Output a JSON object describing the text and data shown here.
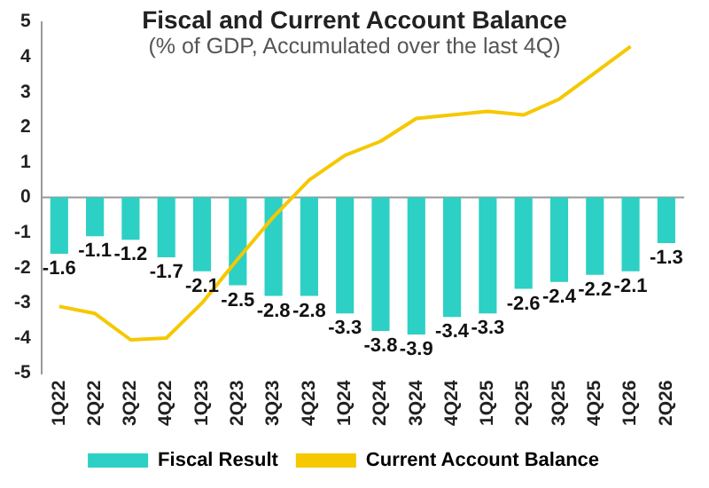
{
  "chart_data": {
    "type": "bar",
    "title": "Fiscal and Current Account Balance",
    "subtitle": "(% of GDP, Accumulated over the last 4Q)",
    "categories": [
      "1Q22",
      "2Q22",
      "3Q22",
      "4Q22",
      "1Q23",
      "2Q23",
      "3Q23",
      "4Q23",
      "1Q24",
      "2Q24",
      "3Q24",
      "4Q24",
      "1Q25",
      "2Q25",
      "3Q25",
      "4Q25",
      "1Q26",
      "2Q26"
    ],
    "series": [
      {
        "name": "Fiscal Result",
        "color": "#2dd0c4",
        "values": [
          -1.6,
          -1.1,
          -1.2,
          -1.7,
          -2.1,
          -2.5,
          -2.8,
          -2.8,
          -3.3,
          -3.8,
          -3.9,
          -3.4,
          -3.3,
          -2.6,
          -2.4,
          -2.2,
          -2.1,
          -1.3
        ],
        "data_labels": true
      },
      {
        "name": "Current Account Balance",
        "type": "line",
        "color": "#f5c800",
        "values": [
          -3.1,
          -3.3,
          -4.05,
          -4.0,
          -3.0,
          -1.75,
          -0.55,
          0.5,
          1.2,
          1.6,
          2.25,
          2.35,
          2.45,
          2.35,
          2.8,
          3.55,
          4.3,
          null
        ]
      }
    ],
    "ref_lines": [
      {
        "axis": "y",
        "value": 0,
        "color": "#999999"
      }
    ],
    "ylim": [
      -5,
      5
    ],
    "yticks": [
      -5,
      -4,
      -3,
      -2,
      -1,
      0,
      1,
      2,
      3,
      4,
      5
    ],
    "grid": false,
    "legend": "bottom",
    "marker": "none"
  }
}
